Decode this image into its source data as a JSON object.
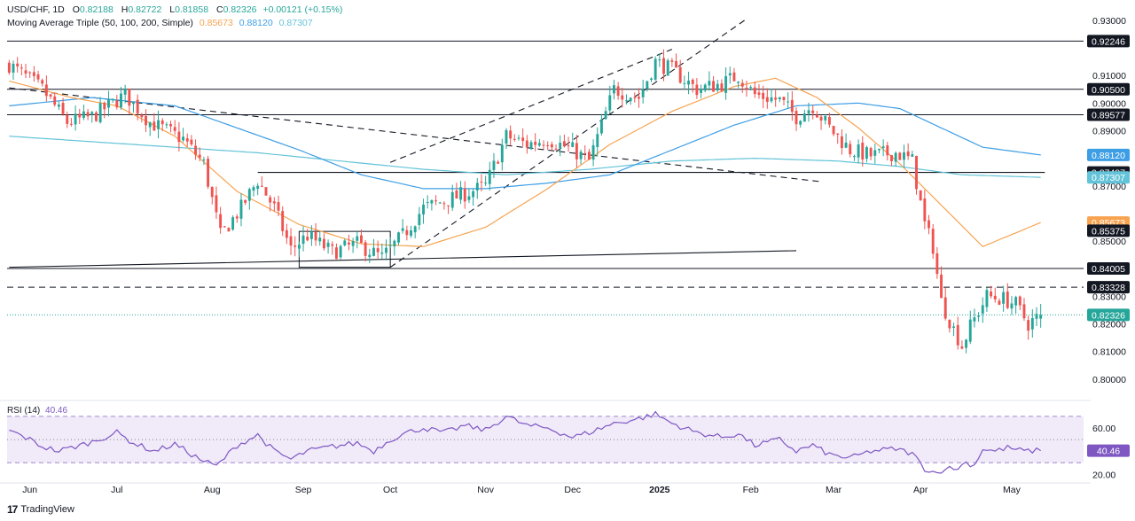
{
  "header": {
    "symbol": "USD/CHF, 1D",
    "o_label": "O",
    "o": "0.82188",
    "h_label": "H",
    "h": "0.82722",
    "l_label": "L",
    "l": "0.81858",
    "c_label": "C",
    "c": "0.82326",
    "change": "+0.00121 (+0.15%)",
    "ma_title": "Moving Average Triple (50, 100, 200, Simple)",
    "ma50": "0.85673",
    "ma100": "0.88120",
    "ma200": "0.87307"
  },
  "rsi_header": {
    "name": "RSI (14)",
    "value": "40.46"
  },
  "brand": {
    "name": "TradingView"
  },
  "colors": {
    "up": "#26a69a",
    "down": "#ef5350",
    "ma50": "#f7a350",
    "ma100": "#3d9ee5",
    "ma200": "#63c3d8",
    "rsi": "#7e57c2",
    "rsi_band": "#e9e1f7",
    "text": "#131722"
  },
  "chart_data": {
    "type": "candlestick",
    "price_axis": {
      "range": [
        0.7935,
        0.9335
      ],
      "ticks": [
        "0.93000",
        "0.91000",
        "0.90000",
        "0.89000",
        "0.87000",
        "0.85000",
        "0.83000",
        "0.82000",
        "0.81000",
        "0.80000"
      ]
    },
    "x_axis": {
      "ticks": [
        {
          "label": "Jun",
          "idx": 5,
          "bold": false
        },
        {
          "label": "Jul",
          "idx": 26,
          "bold": false
        },
        {
          "label": "Aug",
          "idx": 49,
          "bold": false
        },
        {
          "label": "Sep",
          "idx": 71,
          "bold": false
        },
        {
          "label": "Oct",
          "idx": 92,
          "bold": false
        },
        {
          "label": "Nov",
          "idx": 115,
          "bold": false
        },
        {
          "label": "Dec",
          "idx": 136,
          "bold": false
        },
        {
          "label": "2025",
          "idx": 157,
          "bold": true
        },
        {
          "label": "Feb",
          "idx": 179,
          "bold": false
        },
        {
          "label": "Mar",
          "idx": 199,
          "bold": false
        },
        {
          "label": "Apr",
          "idx": 220,
          "bold": false
        },
        {
          "label": "May",
          "idx": 242,
          "bold": false
        }
      ]
    },
    "price_labels": [
      {
        "text": "0.92246",
        "value": 0.92246,
        "bg": "#131722"
      },
      {
        "text": "0.90500",
        "value": 0.905,
        "bg": "#131722"
      },
      {
        "text": "0.89577",
        "value": 0.89577,
        "bg": "#131722"
      },
      {
        "text": "0.88120",
        "value": 0.8812,
        "bg": "#3d9ee5"
      },
      {
        "text": "0.87487",
        "value": 0.87487,
        "bg": "#131722"
      },
      {
        "text": "0.87307",
        "value": 0.87307,
        "bg": "#63c3d8"
      },
      {
        "text": "0.85673",
        "value": 0.85673,
        "bg": "#f7a350"
      },
      {
        "text": "0.85375",
        "value": 0.85375,
        "bg": "#131722"
      },
      {
        "text": "0.84005",
        "value": 0.84005,
        "bg": "#131722"
      },
      {
        "text": "0.83328",
        "value": 0.83328,
        "bg": "#131722"
      },
      {
        "text": "0.82326",
        "value": 0.82326,
        "bg": "#26a69a"
      }
    ],
    "hlines": [
      {
        "value": 0.92246,
        "style": "solid"
      },
      {
        "value": 0.905,
        "style": "solid"
      },
      {
        "value": 0.89577,
        "style": "solid"
      },
      {
        "value": 0.84005,
        "style": "solid"
      },
      {
        "value": 0.83328,
        "style": "dashed"
      },
      {
        "value": 0.82326,
        "style": "dotted"
      }
    ],
    "segments": [
      {
        "from": [
          0,
          0.9055
        ],
        "to": [
          196,
          0.8715
        ],
        "style": "dashed"
      },
      {
        "from": [
          92,
          0.8405
        ],
        "to": [
          178,
          0.9305
        ],
        "style": "dashed"
      },
      {
        "from": [
          92,
          0.8785
        ],
        "to": [
          160,
          0.9195
        ],
        "style": "dashed"
      },
      {
        "from": [
          0,
          0.8405
        ],
        "to": [
          190,
          0.8465
        ],
        "style": "solid"
      },
      {
        "from": [
          60,
          0.87487
        ],
        "to": [
          250,
          0.87487
        ],
        "style": "solid"
      }
    ],
    "box": {
      "from": [
        70,
        0.8405
      ],
      "to": [
        92,
        0.8535
      ]
    },
    "anchors": {
      "close": [
        [
          0,
          0.914
        ],
        [
          8,
          0.905
        ],
        [
          14,
          0.893
        ],
        [
          20,
          0.895
        ],
        [
          28,
          0.903
        ],
        [
          34,
          0.893
        ],
        [
          42,
          0.887
        ],
        [
          47,
          0.878
        ],
        [
          51,
          0.852
        ],
        [
          56,
          0.862
        ],
        [
          60,
          0.872
        ],
        [
          64,
          0.862
        ],
        [
          68,
          0.847
        ],
        [
          72,
          0.852
        ],
        [
          78,
          0.846
        ],
        [
          84,
          0.849
        ],
        [
          90,
          0.844
        ],
        [
          95,
          0.852
        ],
        [
          100,
          0.862
        ],
        [
          108,
          0.866
        ],
        [
          115,
          0.87
        ],
        [
          120,
          0.888
        ],
        [
          125,
          0.885
        ],
        [
          130,
          0.887
        ],
        [
          136,
          0.883
        ],
        [
          140,
          0.879
        ],
        [
          146,
          0.905
        ],
        [
          152,
          0.902
        ],
        [
          156,
          0.915
        ],
        [
          160,
          0.912
        ],
        [
          166,
          0.905
        ],
        [
          172,
          0.907
        ],
        [
          176,
          0.91
        ],
        [
          180,
          0.903
        ],
        [
          186,
          0.901
        ],
        [
          190,
          0.895
        ],
        [
          194,
          0.899
        ],
        [
          198,
          0.891
        ],
        [
          203,
          0.883
        ],
        [
          208,
          0.881
        ],
        [
          214,
          0.882
        ],
        [
          218,
          0.879
        ],
        [
          221,
          0.856
        ],
        [
          223,
          0.848
        ],
        [
          225,
          0.828
        ],
        [
          228,
          0.818
        ],
        [
          230,
          0.812
        ],
        [
          232,
          0.819
        ],
        [
          236,
          0.83
        ],
        [
          240,
          0.829
        ],
        [
          243,
          0.827
        ],
        [
          246,
          0.82
        ],
        [
          249,
          0.8233
        ]
      ],
      "ma50": [
        [
          0,
          0.908
        ],
        [
          15,
          0.902
        ],
        [
          26,
          0.899
        ],
        [
          40,
          0.888
        ],
        [
          55,
          0.868
        ],
        [
          70,
          0.856
        ],
        [
          85,
          0.849
        ],
        [
          100,
          0.848
        ],
        [
          115,
          0.855
        ],
        [
          130,
          0.869
        ],
        [
          145,
          0.885
        ],
        [
          160,
          0.897
        ],
        [
          175,
          0.906
        ],
        [
          185,
          0.909
        ],
        [
          195,
          0.902
        ],
        [
          205,
          0.891
        ],
        [
          215,
          0.878
        ],
        [
          225,
          0.863
        ],
        [
          235,
          0.848
        ],
        [
          249,
          0.8567
        ]
      ],
      "ma100": [
        [
          0,
          0.899
        ],
        [
          20,
          0.902
        ],
        [
          40,
          0.899
        ],
        [
          55,
          0.891
        ],
        [
          70,
          0.883
        ],
        [
          85,
          0.874
        ],
        [
          100,
          0.869
        ],
        [
          115,
          0.869
        ],
        [
          130,
          0.871
        ],
        [
          145,
          0.874
        ],
        [
          160,
          0.883
        ],
        [
          175,
          0.892
        ],
        [
          190,
          0.899
        ],
        [
          205,
          0.9
        ],
        [
          215,
          0.898
        ],
        [
          225,
          0.891
        ],
        [
          235,
          0.884
        ],
        [
          249,
          0.8812
        ]
      ],
      "ma200": [
        [
          0,
          0.888
        ],
        [
          20,
          0.886
        ],
        [
          40,
          0.884
        ],
        [
          60,
          0.882
        ],
        [
          80,
          0.879
        ],
        [
          100,
          0.876
        ],
        [
          120,
          0.874
        ],
        [
          140,
          0.876
        ],
        [
          160,
          0.879
        ],
        [
          180,
          0.88
        ],
        [
          200,
          0.879
        ],
        [
          215,
          0.877
        ],
        [
          230,
          0.874
        ],
        [
          249,
          0.8731
        ]
      ]
    },
    "rsi": {
      "period": 14,
      "bands": [
        30,
        50,
        70
      ],
      "ticks": [
        "60.00",
        "40.46",
        "20.00"
      ],
      "axis_range": [
        18,
        76
      ],
      "anchors": [
        [
          0,
          58
        ],
        [
          5,
          50
        ],
        [
          8,
          44
        ],
        [
          12,
          40
        ],
        [
          20,
          48
        ],
        [
          26,
          56
        ],
        [
          30,
          47
        ],
        [
          35,
          40
        ],
        [
          40,
          46
        ],
        [
          46,
          33
        ],
        [
          50,
          27
        ],
        [
          55,
          45
        ],
        [
          60,
          54
        ],
        [
          64,
          40
        ],
        [
          68,
          33
        ],
        [
          72,
          40
        ],
        [
          78,
          44
        ],
        [
          84,
          47
        ],
        [
          88,
          40
        ],
        [
          92,
          50
        ],
        [
          96,
          56
        ],
        [
          100,
          60
        ],
        [
          105,
          56
        ],
        [
          110,
          62
        ],
        [
          115,
          58
        ],
        [
          120,
          70
        ],
        [
          125,
          62
        ],
        [
          130,
          60
        ],
        [
          136,
          52
        ],
        [
          140,
          56
        ],
        [
          146,
          64
        ],
        [
          152,
          68
        ],
        [
          156,
          72
        ],
        [
          160,
          64
        ],
        [
          166,
          56
        ],
        [
          172,
          52
        ],
        [
          176,
          55
        ],
        [
          180,
          45
        ],
        [
          186,
          50
        ],
        [
          190,
          40
        ],
        [
          194,
          45
        ],
        [
          198,
          37
        ],
        [
          203,
          34
        ],
        [
          208,
          40
        ],
        [
          214,
          42
        ],
        [
          218,
          38
        ],
        [
          221,
          25
        ],
        [
          224,
          21
        ],
        [
          226,
          26
        ],
        [
          228,
          24
        ],
        [
          231,
          30
        ],
        [
          233,
          28
        ],
        [
          235,
          42
        ],
        [
          238,
          40
        ],
        [
          241,
          43
        ],
        [
          245,
          40
        ],
        [
          249,
          40.46
        ]
      ]
    },
    "series": [
      {
        "name": "Moving Average Triple 50",
        "value": "0.85673"
      },
      {
        "name": "Moving Average Triple 100",
        "value": "0.88120"
      },
      {
        "name": "Moving Average Triple 200",
        "value": "0.87307"
      }
    ]
  }
}
